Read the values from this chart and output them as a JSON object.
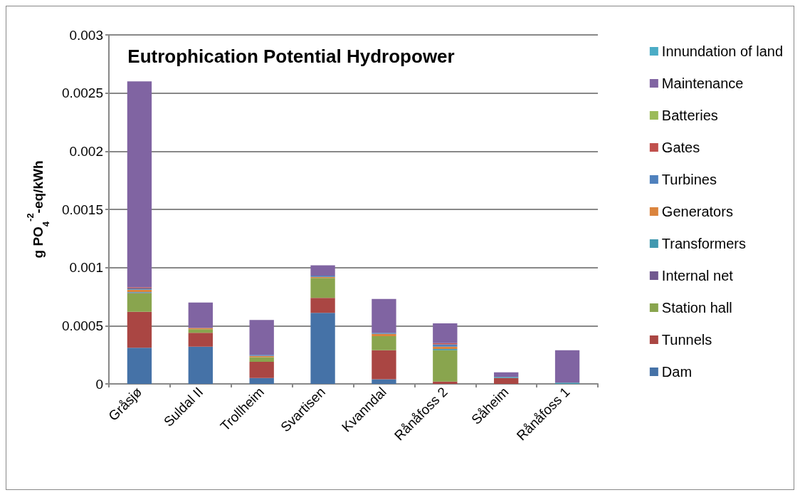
{
  "chart_data": {
    "type": "bar",
    "title": "Eutrophication Potential Hydropower",
    "ylabel": "g PO$_{4}$$^{-2}$-eq/kWh",
    "categories": [
      "Gråsjø",
      "Suldal II",
      "Trollheim",
      "Svartisen",
      "Kvanndal",
      "Rånåfoss 2",
      "Såheim",
      "Rånåfoss 1"
    ],
    "stacked": true,
    "ylim": [
      0,
      0.003
    ],
    "yticks": [
      0,
      0.0005,
      0.001,
      0.0015,
      0.002,
      0.0025,
      0.003
    ],
    "grid": "y",
    "legend": "right",
    "series": [
      {
        "name": "Dam",
        "color": "#4572a7",
        "values": [
          0.00031,
          0.00032,
          5e-05,
          0.00061,
          4e-05,
          0,
          0,
          0
        ]
      },
      {
        "name": "Tunnels",
        "color": "#aa4643",
        "values": [
          0.00031,
          0.00012,
          0.00014,
          0.00013,
          0.00025,
          2e-05,
          5e-05,
          0
        ]
      },
      {
        "name": "Station hall",
        "color": "#89a54e",
        "values": [
          0.00016,
          3e-05,
          4e-05,
          0.00017,
          0.00012,
          0.00027,
          0,
          0
        ]
      },
      {
        "name": "Internal net",
        "color": "#71588f",
        "values": [
          5e-06,
          0,
          0,
          0,
          0,
          0,
          0,
          0
        ]
      },
      {
        "name": "Transformers",
        "color": "#4198af",
        "values": [
          5e-06,
          0,
          0,
          0,
          0,
          1e-05,
          1e-05,
          1e-05
        ]
      },
      {
        "name": "Generators",
        "color": "#db843d",
        "values": [
          2e-05,
          1e-05,
          1e-05,
          1e-05,
          2e-05,
          2e-05,
          0,
          0
        ]
      },
      {
        "name": "Turbines",
        "color": "#4f81bd",
        "values": [
          1e-05,
          0,
          1e-05,
          1e-05,
          1e-05,
          2e-05,
          0,
          0
        ]
      },
      {
        "name": "Gates",
        "color": "#c0504d",
        "values": [
          1e-05,
          0,
          0,
          0,
          0,
          1e-05,
          0,
          0
        ]
      },
      {
        "name": "Batteries",
        "color": "#9bbb59",
        "values": [
          0,
          0,
          0,
          0,
          0,
          0,
          0,
          0
        ]
      },
      {
        "name": "Maintenance",
        "color": "#8064a2",
        "values": [
          0.00177,
          0.00022,
          0.0003,
          9e-05,
          0.00029,
          0.00017,
          4e-05,
          0.00028
        ]
      },
      {
        "name": "Innundation of land",
        "color": "#4bacc6",
        "values": [
          0,
          0,
          0,
          0,
          0,
          0,
          0,
          0
        ]
      }
    ]
  }
}
